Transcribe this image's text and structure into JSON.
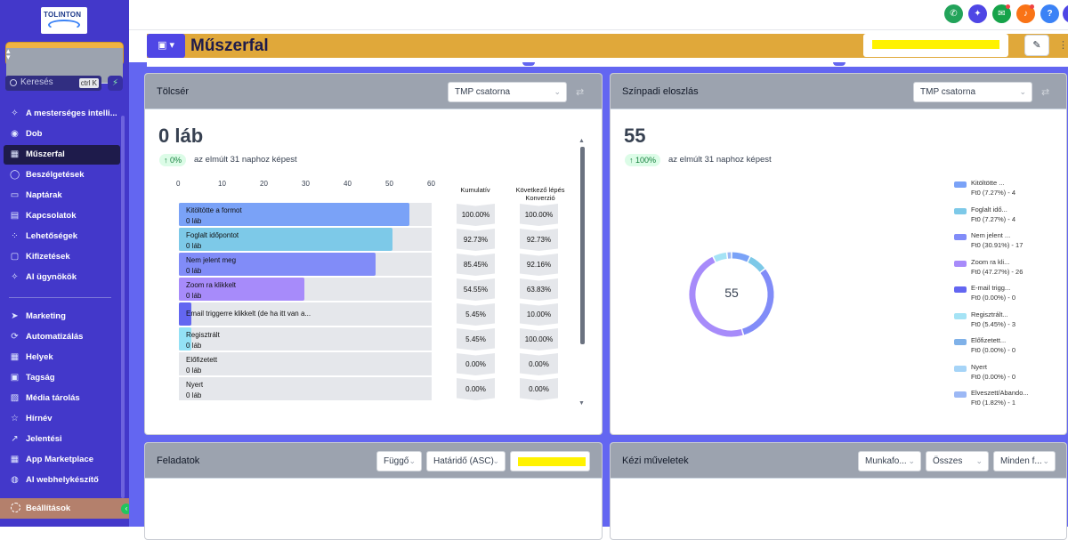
{
  "logo": {
    "text": "TOLINTON"
  },
  "search": {
    "placeholder": "Keresés",
    "shortcut": "ctrl K"
  },
  "nav": [
    {
      "label": "A mesterséges intelli...",
      "icon": "sparkle-icon"
    },
    {
      "label": "Dob",
      "icon": "radio-icon"
    },
    {
      "label": "Műszerfal",
      "icon": "dashboard-icon"
    },
    {
      "label": "Beszélgetések",
      "icon": "chat-icon"
    },
    {
      "label": "Naptárak",
      "icon": "calendar-icon"
    },
    {
      "label": "Kapcsolatok",
      "icon": "contacts-icon"
    },
    {
      "label": "Lehetőségek",
      "icon": "opportunities-icon"
    },
    {
      "label": "Kifizetések",
      "icon": "payments-icon"
    },
    {
      "label": "AI ügynökök",
      "icon": "sparkle-icon"
    },
    {
      "label": "Marketing",
      "icon": "send-icon"
    },
    {
      "label": "Automatizálás",
      "icon": "automation-icon"
    },
    {
      "label": "Helyek",
      "icon": "sites-icon"
    },
    {
      "label": "Tagság",
      "icon": "membership-icon"
    },
    {
      "label": "Média tárolás",
      "icon": "image-icon"
    },
    {
      "label": "Hírnév",
      "icon": "star-icon"
    },
    {
      "label": "Jelentési",
      "icon": "trend-icon"
    },
    {
      "label": "App Marketplace",
      "icon": "grid-icon"
    },
    {
      "label": "AI webhelykészítő",
      "icon": "globe-icon"
    }
  ],
  "settings": {
    "label": "Beállítások"
  },
  "page": {
    "title": "Műszerfal"
  },
  "funnel": {
    "title": "Tölcsér",
    "select": "TMP csatorna",
    "big": "0 láb",
    "change": "↑ 0%",
    "compare": "az elmúlt 31 naphoz képest",
    "axis": [
      "0",
      "10",
      "20",
      "30",
      "40",
      "50",
      "60"
    ],
    "col1": "Kumulatív",
    "col2": "Következő lépés Konverzió",
    "rows": [
      {
        "name": "Kitöltötte a formot",
        "sub": "0 láb",
        "bar": 55,
        "cum": "100.00%",
        "next": "100.00%",
        "color": "#7aa2f7"
      },
      {
        "name": "Foglalt időpontot",
        "sub": "0 láb",
        "bar": 51,
        "cum": "92.73%",
        "next": "92.73%",
        "color": "#7dc9e8"
      },
      {
        "name": "Nem jelent meg",
        "sub": "0 láb",
        "bar": 47,
        "cum": "85.45%",
        "next": "92.16%",
        "color": "#818cf8"
      },
      {
        "name": "Zoom ra klikkelt",
        "sub": "0 láb",
        "bar": 30,
        "cum": "54.55%",
        "next": "63.83%",
        "color": "#a78bfa"
      },
      {
        "name": "Email triggerre klikkelt (de ha itt van a...",
        "sub": "",
        "bar": 3,
        "cum": "5.45%",
        "next": "10.00%",
        "color": "#6366f1"
      },
      {
        "name": "Regisztrált",
        "sub": "0 láb",
        "bar": 3,
        "cum": "5.45%",
        "next": "100.00%",
        "color": "#93e1f5"
      },
      {
        "name": "Előfizetett",
        "sub": "0 láb",
        "bar": 0,
        "cum": "0.00%",
        "next": "0.00%",
        "color": "#7aa2f7"
      },
      {
        "name": "Nyert",
        "sub": "0 láb",
        "bar": 0,
        "cum": "0.00%",
        "next": "0.00%",
        "color": "#93c5fd"
      }
    ]
  },
  "stage": {
    "title": "Színpadi eloszlás",
    "select": "TMP csatorna",
    "big": "55",
    "change": "↑ 100%",
    "compare": "az elmúlt 31 naphoz képest",
    "center": "55",
    "legend": [
      {
        "a": "Kitöltötte ...",
        "b": "Ft0 (7.27%) - 4",
        "color": "#7aa2f7",
        "count": 4
      },
      {
        "a": "Foglalt idő...",
        "b": "Ft0 (7.27%) - 4",
        "color": "#7dc9e8",
        "count": 4
      },
      {
        "a": "Nem jelent ...",
        "b": "Ft0 (30.91%) - 17",
        "color": "#818cf8",
        "count": 17
      },
      {
        "a": "Zoom ra kli...",
        "b": "Ft0 (47.27%) - 26",
        "color": "#a78bfa",
        "count": 26
      },
      {
        "a": "E-mail trigg...",
        "b": "Ft0 (0.00%) - 0",
        "color": "#6366f1",
        "count": 0
      },
      {
        "a": "Regisztrált...",
        "b": "Ft0 (5.45%) - 3",
        "color": "#a5e3f5",
        "count": 3
      },
      {
        "a": "Előfizetett...",
        "b": "Ft0 (0.00%) - 0",
        "color": "#7fb1e8",
        "count": 0
      },
      {
        "a": "Nyert",
        "b": "Ft0 (0.00%) - 0",
        "color": "#a6d4f7",
        "count": 0
      },
      {
        "a": "Elveszett/Abando...",
        "b": "Ft0 (1.82%) - 1",
        "color": "#9cb8f5",
        "count": 1
      }
    ]
  },
  "tasks": {
    "title": "Feladatok",
    "filters": [
      "Függő",
      "Határidő (ASC)"
    ]
  },
  "manual": {
    "title": "Kézi műveletek",
    "filters": [
      "Munkafo...",
      "Összes",
      "Minden f..."
    ]
  }
}
